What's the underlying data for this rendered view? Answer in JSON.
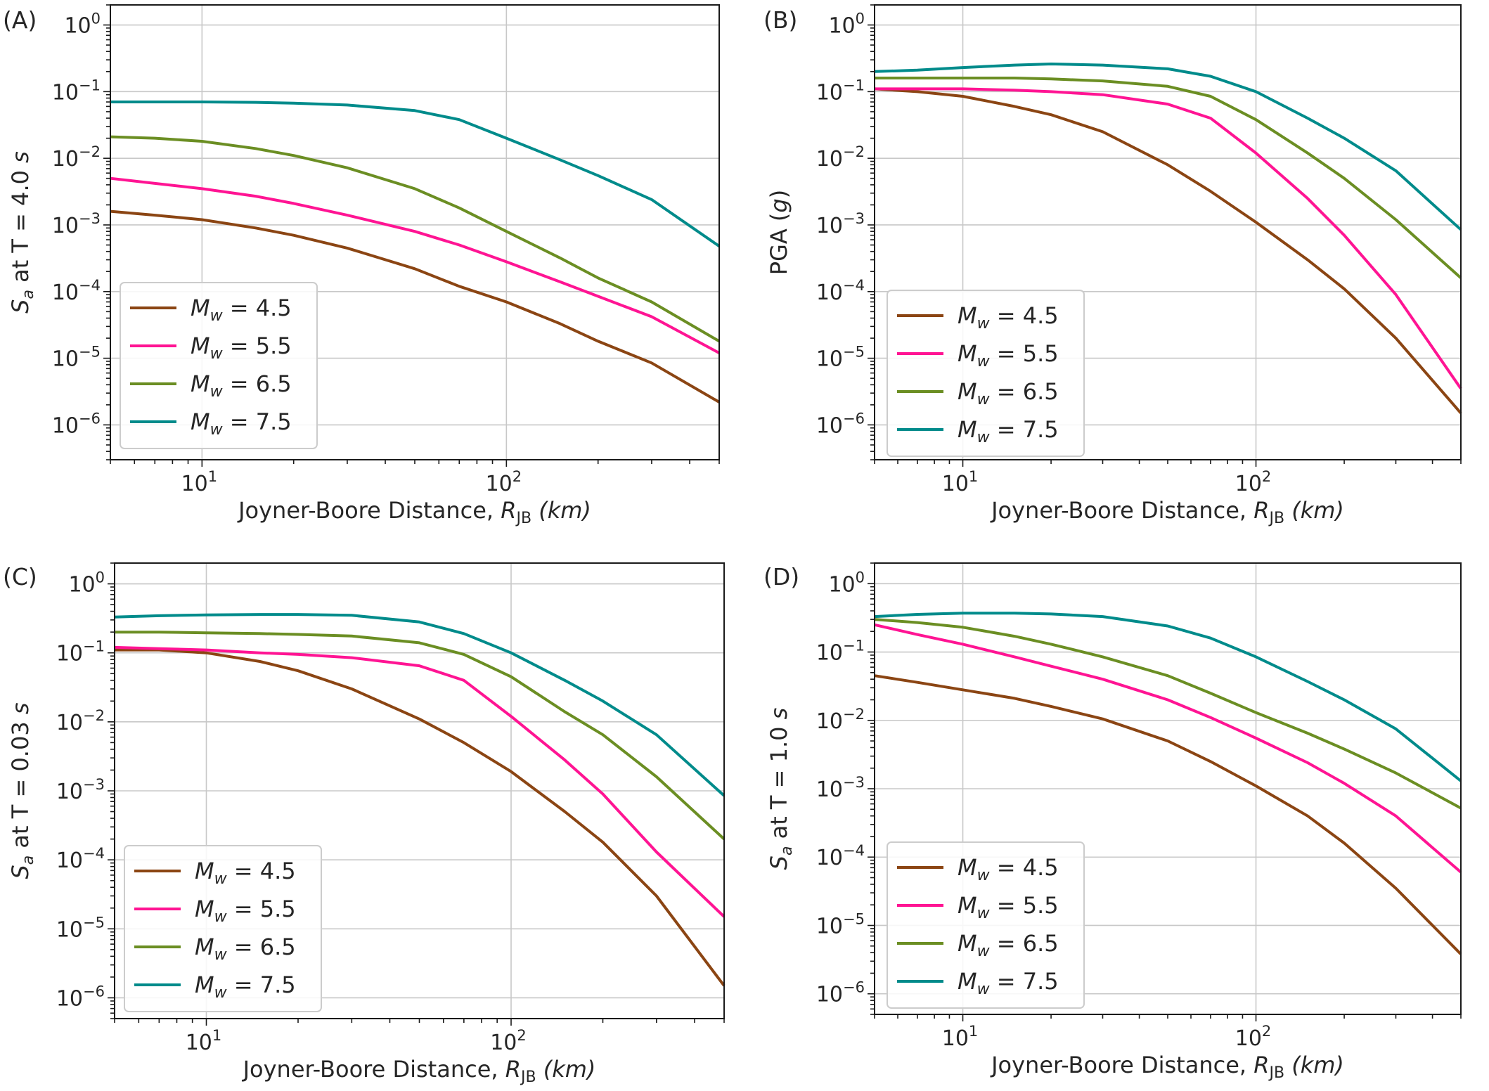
{
  "chart_data": [
    {
      "panel_label": "(A)",
      "type": "line",
      "xscale": "log",
      "yscale": "log",
      "xlim": [
        5,
        500
      ],
      "ylim": [
        3e-07,
        2
      ],
      "xticks": [
        {
          "value": 10,
          "base": "10",
          "exp": "1"
        },
        {
          "value": 100,
          "base": "10",
          "exp": "2"
        }
      ],
      "yticks": [
        {
          "value": 1e-06,
          "base": "10",
          "exp": "−6"
        },
        {
          "value": 1e-05,
          "base": "10",
          "exp": "−5"
        },
        {
          "value": 0.0001,
          "base": "10",
          "exp": "−4"
        },
        {
          "value": 0.001,
          "base": "10",
          "exp": "−3"
        },
        {
          "value": 0.01,
          "base": "10",
          "exp": "−2"
        },
        {
          "value": 0.1,
          "base": "10",
          "exp": "−1"
        },
        {
          "value": 1,
          "base": "10",
          "exp": "0"
        }
      ],
      "grid": true,
      "xlabel": {
        "text": "Joyner-Boore Distance, ",
        "sym": "R",
        "sub": "JB",
        "unit": " (km)"
      },
      "ylabel": {
        "prefix": "",
        "italic_sym": "S",
        "sub": "a",
        "text": " at T = 4.0 ",
        "unit_italic": "s"
      },
      "legend_position": "lower-left",
      "x": [
        5,
        7,
        10,
        15,
        20,
        30,
        50,
        70,
        100,
        150,
        200,
        300,
        500
      ],
      "series": [
        {
          "name": "Mw = 4.5",
          "color": "#8b4513",
          "values": [
            0.0016,
            0.0014,
            0.0012,
            0.0009,
            0.0007,
            0.00045,
            0.00022,
            0.00012,
            7e-05,
            3.3e-05,
            1.8e-05,
            8.5e-06,
            2.2e-06
          ]
        },
        {
          "name": "Mw = 5.5",
          "color": "#ff1493",
          "values": [
            0.005,
            0.0042,
            0.0035,
            0.0027,
            0.0021,
            0.0014,
            0.0008,
            0.0005,
            0.00028,
            0.00014,
            8.5e-05,
            4.2e-05,
            1.2e-05
          ]
        },
        {
          "name": "Mw = 6.5",
          "color": "#6b8e23",
          "values": [
            0.021,
            0.02,
            0.018,
            0.014,
            0.011,
            0.0072,
            0.0035,
            0.0018,
            0.0008,
            0.00032,
            0.00016,
            7e-05,
            1.8e-05
          ]
        },
        {
          "name": "Mw = 7.5",
          "color": "#008b8b",
          "values": [
            0.07,
            0.07,
            0.07,
            0.069,
            0.067,
            0.063,
            0.052,
            0.038,
            0.02,
            0.0095,
            0.0055,
            0.0024,
            0.00048
          ]
        }
      ]
    },
    {
      "panel_label": "(B)",
      "type": "line",
      "xscale": "log",
      "yscale": "log",
      "xlim": [
        5,
        500
      ],
      "ylim": [
        3e-07,
        2
      ],
      "xticks": [
        {
          "value": 10,
          "base": "10",
          "exp": "1"
        },
        {
          "value": 100,
          "base": "10",
          "exp": "2"
        }
      ],
      "yticks": [
        {
          "value": 1e-06,
          "base": "10",
          "exp": "−6"
        },
        {
          "value": 1e-05,
          "base": "10",
          "exp": "−5"
        },
        {
          "value": 0.0001,
          "base": "10",
          "exp": "−4"
        },
        {
          "value": 0.001,
          "base": "10",
          "exp": "−3"
        },
        {
          "value": 0.01,
          "base": "10",
          "exp": "−2"
        },
        {
          "value": 0.1,
          "base": "10",
          "exp": "−1"
        },
        {
          "value": 1,
          "base": "10",
          "exp": "0"
        }
      ],
      "grid": true,
      "xlabel": {
        "text": "Joyner-Boore Distance, ",
        "sym": "R",
        "sub": "JB",
        "unit": " (km)"
      },
      "ylabel": {
        "prefix": "PGA (",
        "italic_sym": "g",
        "sub": "",
        "text": ")",
        "unit_italic": ""
      },
      "legend_position": "lower-left",
      "x": [
        5,
        7,
        10,
        15,
        20,
        30,
        50,
        70,
        100,
        150,
        200,
        300,
        500
      ],
      "series": [
        {
          "name": "Mw = 4.5",
          "color": "#8b4513",
          "values": [
            0.11,
            0.1,
            0.085,
            0.06,
            0.045,
            0.025,
            0.008,
            0.0032,
            0.0011,
            0.0003,
            0.00011,
            2e-05,
            1.5e-06
          ]
        },
        {
          "name": "Mw = 5.5",
          "color": "#ff1493",
          "values": [
            0.11,
            0.11,
            0.11,
            0.105,
            0.1,
            0.09,
            0.065,
            0.04,
            0.012,
            0.0025,
            0.0007,
            9e-05,
            3.5e-06
          ]
        },
        {
          "name": "Mw = 6.5",
          "color": "#6b8e23",
          "values": [
            0.16,
            0.16,
            0.16,
            0.16,
            0.155,
            0.145,
            0.12,
            0.085,
            0.038,
            0.012,
            0.005,
            0.0012,
            0.00016
          ]
        },
        {
          "name": "Mw = 7.5",
          "color": "#008b8b",
          "values": [
            0.2,
            0.21,
            0.23,
            0.25,
            0.26,
            0.25,
            0.22,
            0.17,
            0.1,
            0.04,
            0.02,
            0.0065,
            0.00085
          ]
        }
      ]
    },
    {
      "panel_label": "(C)",
      "type": "line",
      "xscale": "log",
      "yscale": "log",
      "xlim": [
        5,
        500
      ],
      "ylim": [
        5e-07,
        2
      ],
      "xticks": [
        {
          "value": 10,
          "base": "10",
          "exp": "1"
        },
        {
          "value": 100,
          "base": "10",
          "exp": "2"
        }
      ],
      "yticks": [
        {
          "value": 1e-06,
          "base": "10",
          "exp": "−6"
        },
        {
          "value": 1e-05,
          "base": "10",
          "exp": "−5"
        },
        {
          "value": 0.0001,
          "base": "10",
          "exp": "−4"
        },
        {
          "value": 0.001,
          "base": "10",
          "exp": "−3"
        },
        {
          "value": 0.01,
          "base": "10",
          "exp": "−2"
        },
        {
          "value": 0.1,
          "base": "10",
          "exp": "−1"
        },
        {
          "value": 1,
          "base": "10",
          "exp": "0"
        }
      ],
      "grid": true,
      "xlabel": {
        "text": "Joyner-Boore Distance, ",
        "sym": "R",
        "sub": "JB",
        "unit": " (km)"
      },
      "ylabel": {
        "prefix": "",
        "italic_sym": "S",
        "sub": "a",
        "text": " at T = 0.03 ",
        "unit_italic": "s"
      },
      "legend_position": "lower-left",
      "x": [
        5,
        7,
        10,
        15,
        20,
        30,
        50,
        70,
        100,
        150,
        200,
        300,
        500
      ],
      "series": [
        {
          "name": "Mw = 4.5",
          "color": "#8b4513",
          "values": [
            0.11,
            0.11,
            0.1,
            0.075,
            0.055,
            0.03,
            0.011,
            0.005,
            0.0019,
            0.0005,
            0.00018,
            3e-05,
            1.5e-06
          ]
        },
        {
          "name": "Mw = 5.5",
          "color": "#ff1493",
          "values": [
            0.12,
            0.115,
            0.11,
            0.1,
            0.095,
            0.085,
            0.065,
            0.04,
            0.012,
            0.0028,
            0.0009,
            0.00013,
            1.5e-05
          ]
        },
        {
          "name": "Mw = 6.5",
          "color": "#6b8e23",
          "values": [
            0.2,
            0.2,
            0.195,
            0.19,
            0.185,
            0.175,
            0.14,
            0.095,
            0.045,
            0.014,
            0.0065,
            0.0016,
            0.0002
          ]
        },
        {
          "name": "Mw = 7.5",
          "color": "#008b8b",
          "values": [
            0.33,
            0.345,
            0.355,
            0.36,
            0.36,
            0.35,
            0.28,
            0.19,
            0.1,
            0.04,
            0.02,
            0.0065,
            0.00085
          ]
        }
      ]
    },
    {
      "panel_label": "(D)",
      "type": "line",
      "xscale": "log",
      "yscale": "log",
      "xlim": [
        5,
        500
      ],
      "ylim": [
        5e-07,
        2
      ],
      "xticks": [
        {
          "value": 10,
          "base": "10",
          "exp": "1"
        },
        {
          "value": 100,
          "base": "10",
          "exp": "2"
        }
      ],
      "yticks": [
        {
          "value": 1e-06,
          "base": "10",
          "exp": "−6"
        },
        {
          "value": 1e-05,
          "base": "10",
          "exp": "−5"
        },
        {
          "value": 0.0001,
          "base": "10",
          "exp": "−4"
        },
        {
          "value": 0.001,
          "base": "10",
          "exp": "−3"
        },
        {
          "value": 0.01,
          "base": "10",
          "exp": "−2"
        },
        {
          "value": 0.1,
          "base": "10",
          "exp": "−1"
        },
        {
          "value": 1,
          "base": "10",
          "exp": "0"
        }
      ],
      "grid": true,
      "xlabel": {
        "text": "Joyner-Boore Distance, ",
        "sym": "R",
        "sub": "JB",
        "unit": " (km)"
      },
      "ylabel": {
        "prefix": "",
        "italic_sym": "S",
        "sub": "a",
        "text": " at T = 1.0 ",
        "unit_italic": "s"
      },
      "legend_position": "lower-left",
      "x": [
        5,
        7,
        10,
        15,
        20,
        30,
        50,
        70,
        100,
        150,
        200,
        300,
        500
      ],
      "series": [
        {
          "name": "Mw = 4.5",
          "color": "#8b4513",
          "values": [
            0.045,
            0.036,
            0.028,
            0.021,
            0.016,
            0.0105,
            0.005,
            0.0025,
            0.0011,
            0.0004,
            0.00016,
            3.5e-05,
            3.8e-06
          ]
        },
        {
          "name": "Mw = 5.5",
          "color": "#ff1493",
          "values": [
            0.25,
            0.18,
            0.13,
            0.085,
            0.062,
            0.04,
            0.02,
            0.011,
            0.0055,
            0.0024,
            0.0012,
            0.0004,
            6e-05
          ]
        },
        {
          "name": "Mw = 6.5",
          "color": "#6b8e23",
          "values": [
            0.3,
            0.27,
            0.23,
            0.17,
            0.13,
            0.085,
            0.045,
            0.025,
            0.013,
            0.0065,
            0.0038,
            0.0017,
            0.00052
          ]
        },
        {
          "name": "Mw = 7.5",
          "color": "#008b8b",
          "values": [
            0.33,
            0.355,
            0.37,
            0.37,
            0.36,
            0.33,
            0.24,
            0.16,
            0.085,
            0.037,
            0.02,
            0.0075,
            0.0013
          ]
        }
      ]
    }
  ]
}
